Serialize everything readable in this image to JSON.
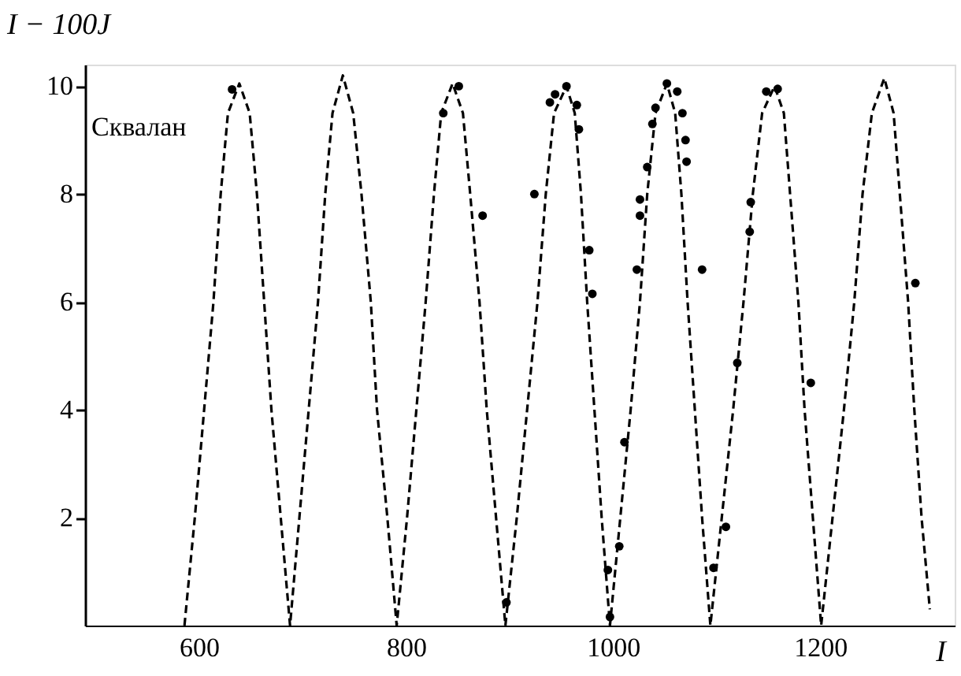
{
  "chart_data": {
    "type": "line",
    "xlabel": "I",
    "ylabel": "I − 100J",
    "annotations": [
      "Сквалан"
    ],
    "xlim": [
      490,
      1330
    ],
    "ylim": [
      0,
      10.4
    ],
    "xticks": [
      600,
      800,
      1000,
      1200
    ],
    "yticks": [
      2,
      4,
      6,
      8,
      10
    ],
    "grid": false,
    "series": [
      {
        "color": "#000000",
        "line_style": "dashed",
        "marker": "none",
        "x": [
          586,
          596,
          605,
          614,
          621,
          628,
          639,
          649,
          656,
          663,
          670,
          679,
          688,
          697,
          706,
          715,
          722,
          729,
          739,
          749,
          757,
          766,
          772,
          782,
          791,
          801,
          810,
          819,
          827,
          834,
          845,
          855,
          862,
          871,
          878,
          887,
          896,
          907,
          917,
          927,
          935,
          943,
          955,
          963,
          969,
          975,
          982,
          989,
          997,
          1007,
          1017,
          1026,
          1033,
          1041,
          1052,
          1060,
          1066,
          1072,
          1079,
          1086,
          1094,
          1105,
          1116,
          1126,
          1135,
          1144,
          1156,
          1165,
          1171,
          1179,
          1185,
          1193,
          1201,
          1212,
          1223,
          1233,
          1241,
          1250,
          1262,
          1271,
          1277,
          1285,
          1291,
          1298,
          1306
        ],
        "values": [
          0,
          2,
          4,
          6,
          8,
          9.5,
          10.05,
          9.5,
          8,
          6,
          4,
          2,
          0,
          2,
          4,
          6,
          8,
          9.5,
          10.2,
          9.5,
          8,
          6,
          4,
          2,
          0,
          2,
          4,
          6,
          8,
          9.5,
          10.05,
          9.5,
          8,
          6,
          4,
          2,
          0,
          2,
          4,
          6,
          8,
          9.5,
          10.0,
          9.5,
          8,
          6,
          4,
          2,
          0,
          2,
          4,
          6,
          8,
          9.5,
          10.05,
          9.5,
          8,
          6,
          4,
          2,
          0,
          2,
          4,
          6,
          8,
          9.5,
          10.0,
          9.5,
          8,
          6,
          4,
          2,
          0,
          2,
          4,
          6,
          8,
          9.5,
          10.15,
          9.5,
          8,
          6,
          4,
          2,
          0.3
        ]
      },
      {
        "type": "scatter",
        "color": "#000000",
        "marker": "circle",
        "x": [
          632,
          836,
          851,
          874,
          924,
          939,
          944,
          955,
          965,
          967,
          977,
          980,
          1023,
          1026,
          1026,
          1033,
          1038,
          1041,
          1052,
          1062,
          1067,
          1070,
          1071,
          1086,
          1133,
          1132,
          1148,
          1159,
          1292,
          897,
          997,
          995,
          1006,
          1011,
          1097,
          1109,
          1120,
          1191
        ],
        "values": [
          9.94,
          9.5,
          10.0,
          7.6,
          8.0,
          9.7,
          9.85,
          10.0,
          9.65,
          9.2,
          6.96,
          6.15,
          6.6,
          7.9,
          7.6,
          8.5,
          9.3,
          9.6,
          10.05,
          9.9,
          9.5,
          9.0,
          8.6,
          6.6,
          7.85,
          7.3,
          9.9,
          9.95,
          6.35,
          0.43,
          0.16,
          1.03,
          1.47,
          3.4,
          1.07,
          1.83,
          4.87,
          4.5
        ]
      }
    ]
  }
}
